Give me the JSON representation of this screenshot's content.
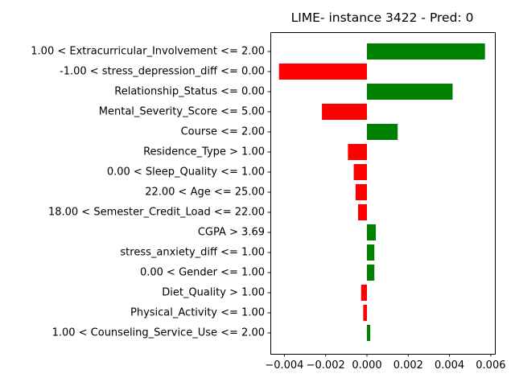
{
  "chart_data": {
    "type": "bar",
    "orientation": "horizontal",
    "title": "LIME- instance 3422 - Pred: 0",
    "xlabel": "",
    "ylabel": "",
    "xlim": [
      -0.00425,
      0.00625
    ],
    "xticks": [
      -0.004,
      -0.002,
      0.0,
      0.002,
      0.004,
      0.006
    ],
    "xtick_labels": [
      "−0.004",
      "−0.002",
      "0.000",
      "0.002",
      "0.004",
      "0.006"
    ],
    "grid": false,
    "colors": {
      "positive": "#008000",
      "negative": "#ff0000",
      "axis": "#000000"
    },
    "categories": [
      "1.00 < Extracurricular_Involvement <= 2.00",
      "-1.00 < stress_depression_diff <= 0.00",
      "Relationship_Status <= 0.00",
      "Mental_Severity_Score <= 5.00",
      "Course <= 2.00",
      "Residence_Type > 1.00",
      "0.00 < Sleep_Quality <= 1.00",
      "22.00 < Age <= 25.00",
      "18.00 < Semester_Credit_Load <= 22.00",
      "CGPA > 3.69",
      "stress_anxiety_diff <= 1.00",
      "0.00 < Gender <= 1.00",
      "Diet_Quality > 1.00",
      "Physical_Activity <= 1.00",
      "1.00 < Counseling_Service_Use <= 2.00"
    ],
    "values": [
      0.00572,
      -0.00426,
      0.00415,
      -0.00218,
      0.00149,
      -0.00092,
      -0.00064,
      -0.00055,
      -0.00043,
      0.00043,
      0.00036,
      0.00036,
      -0.00028,
      -0.00018,
      0.00016
    ]
  }
}
